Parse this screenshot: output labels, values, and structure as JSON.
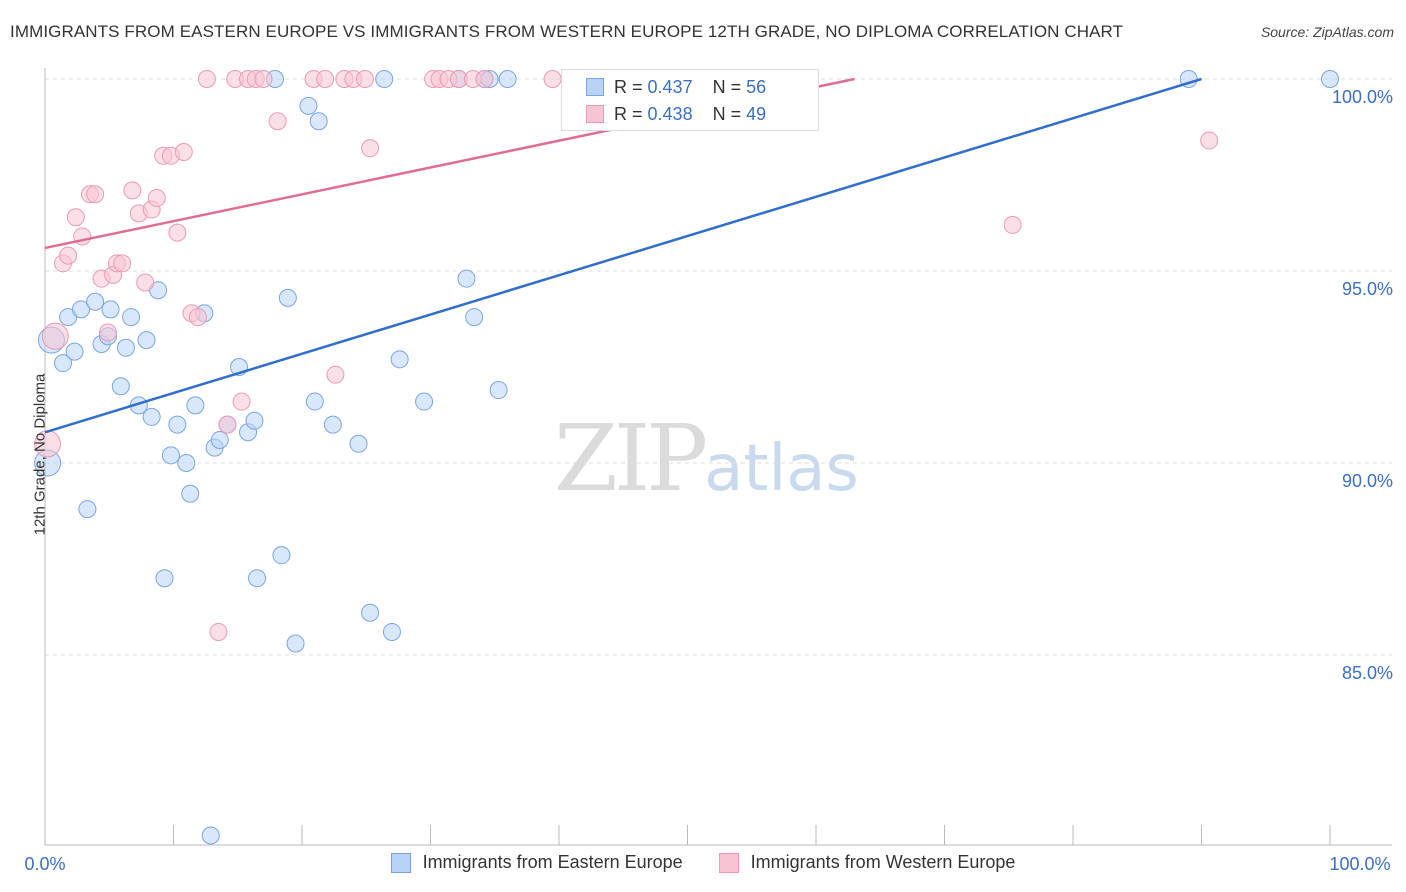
{
  "title": "IMMIGRANTS FROM EASTERN EUROPE VS IMMIGRANTS FROM WESTERN EUROPE 12TH GRADE, NO DIPLOMA CORRELATION CHART",
  "source": "Source: ZipAtlas.com",
  "watermark": {
    "zip": "ZIP",
    "atlas": "atlas"
  },
  "colors": {
    "blue_fill": "#b8d3f5",
    "blue_stroke": "#7aa6e0",
    "blue_line": "#2f6fcc",
    "pink_fill": "#f8c4d4",
    "pink_stroke": "#ec9ab4",
    "pink_line": "#e06c94",
    "axis_label": "#3a6fc4",
    "grid": "#dddddd"
  },
  "legend": {
    "r_label": "R =",
    "n_label": "N =",
    "series": [
      {
        "r": "0.437",
        "n": "56"
      },
      {
        "r": "0.438",
        "n": "49"
      }
    ]
  },
  "chart_data": {
    "type": "scatter",
    "xlabel": "",
    "ylabel": "12th Grade, No Diploma",
    "xlim": [
      0,
      100
    ],
    "ylim": [
      80.5,
      100.8
    ],
    "x_tick_labels": [
      "0.0%",
      "100.0%"
    ],
    "y_ticks": [
      85,
      90,
      95,
      100
    ],
    "y_tick_labels": [
      "85.0%",
      "90.0%",
      "95.0%",
      "100.0%"
    ],
    "series": [
      {
        "name": "Immigrants from Eastern Europe",
        "r": 0.437,
        "n": 56,
        "trend": {
          "x": [
            0,
            90
          ],
          "y": [
            90.8,
            100.0
          ]
        },
        "points": [
          [
            0.2,
            90.0
          ],
          [
            0.5,
            93.2
          ],
          [
            1.4,
            92.6
          ],
          [
            1.8,
            93.8
          ],
          [
            2.3,
            92.9
          ],
          [
            2.8,
            94.0
          ],
          [
            3.3,
            88.8
          ],
          [
            3.9,
            94.2
          ],
          [
            4.4,
            93.1
          ],
          [
            4.9,
            93.3
          ],
          [
            5.1,
            94.0
          ],
          [
            5.9,
            92.0
          ],
          [
            6.3,
            93.0
          ],
          [
            6.7,
            93.8
          ],
          [
            7.3,
            91.5
          ],
          [
            7.9,
            93.2
          ],
          [
            8.3,
            91.2
          ],
          [
            8.8,
            94.5
          ],
          [
            9.3,
            87.0
          ],
          [
            9.8,
            90.2
          ],
          [
            10.3,
            91.0
          ],
          [
            11.0,
            90.0
          ],
          [
            11.3,
            89.2
          ],
          [
            11.7,
            91.5
          ],
          [
            12.4,
            93.9
          ],
          [
            12.9,
            80.3
          ],
          [
            13.2,
            90.4
          ],
          [
            13.6,
            90.6
          ],
          [
            14.2,
            91.0
          ],
          [
            15.1,
            92.5
          ],
          [
            15.8,
            90.8
          ],
          [
            16.3,
            91.1
          ],
          [
            16.5,
            87.0
          ],
          [
            17.9,
            100.0
          ],
          [
            18.4,
            87.6
          ],
          [
            18.9,
            94.3
          ],
          [
            19.5,
            85.3
          ],
          [
            20.5,
            99.3
          ],
          [
            21.0,
            91.6
          ],
          [
            21.3,
            98.9
          ],
          [
            22.4,
            91.0
          ],
          [
            24.4,
            90.5
          ],
          [
            25.3,
            86.1
          ],
          [
            26.4,
            100.0
          ],
          [
            27.0,
            85.6
          ],
          [
            27.6,
            92.7
          ],
          [
            29.5,
            91.6
          ],
          [
            32.2,
            100.0
          ],
          [
            32.8,
            94.8
          ],
          [
            33.4,
            93.8
          ],
          [
            34.2,
            100.0
          ],
          [
            34.6,
            100.0
          ],
          [
            35.3,
            91.9
          ],
          [
            36.0,
            100.0
          ],
          [
            89.0,
            100.0
          ],
          [
            100.0,
            100.0
          ]
        ]
      },
      {
        "name": "Immigrants from Western Europe",
        "r": 0.438,
        "n": 49,
        "trend": {
          "x": [
            0,
            63
          ],
          "y": [
            95.6,
            100.0
          ]
        },
        "points": [
          [
            0.2,
            90.5
          ],
          [
            0.8,
            93.3
          ],
          [
            1.4,
            95.2
          ],
          [
            1.8,
            95.4
          ],
          [
            2.4,
            96.4
          ],
          [
            2.9,
            95.9
          ],
          [
            3.5,
            97.0
          ],
          [
            3.9,
            97.0
          ],
          [
            4.4,
            94.8
          ],
          [
            4.9,
            93.4
          ],
          [
            5.3,
            94.9
          ],
          [
            5.6,
            95.2
          ],
          [
            6.0,
            95.2
          ],
          [
            6.8,
            97.1
          ],
          [
            7.3,
            96.5
          ],
          [
            7.8,
            94.7
          ],
          [
            8.3,
            96.6
          ],
          [
            8.7,
            96.9
          ],
          [
            9.2,
            98.0
          ],
          [
            9.8,
            98.0
          ],
          [
            10.3,
            96.0
          ],
          [
            10.8,
            98.1
          ],
          [
            11.4,
            93.9
          ],
          [
            11.9,
            93.8
          ],
          [
            12.6,
            100.0
          ],
          [
            13.5,
            85.6
          ],
          [
            14.2,
            91.0
          ],
          [
            14.8,
            100.0
          ],
          [
            15.3,
            91.6
          ],
          [
            15.8,
            100.0
          ],
          [
            16.4,
            100.0
          ],
          [
            17.0,
            100.0
          ],
          [
            18.1,
            98.9
          ],
          [
            20.9,
            100.0
          ],
          [
            21.8,
            100.0
          ],
          [
            22.6,
            92.3
          ],
          [
            23.3,
            100.0
          ],
          [
            24.0,
            100.0
          ],
          [
            24.9,
            100.0
          ],
          [
            25.3,
            98.2
          ],
          [
            30.2,
            100.0
          ],
          [
            30.7,
            100.0
          ],
          [
            31.4,
            100.0
          ],
          [
            32.2,
            100.0
          ],
          [
            33.3,
            100.0
          ],
          [
            34.2,
            100.0
          ],
          [
            39.5,
            100.0
          ],
          [
            75.3,
            96.2
          ],
          [
            90.6,
            98.4
          ]
        ]
      }
    ]
  }
}
